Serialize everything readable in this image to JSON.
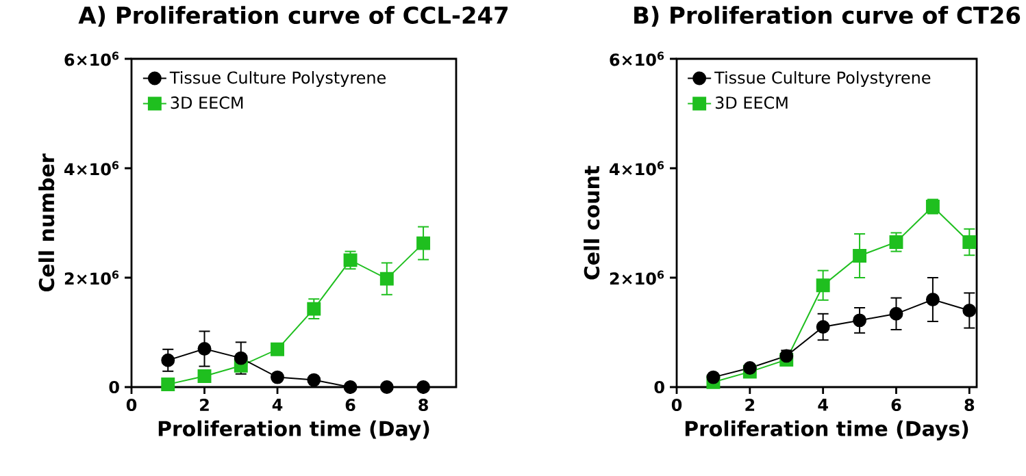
{
  "chart_data": [
    {
      "type": "line",
      "title": "A)    Proliferation curve of CCL-247",
      "xlabel": "Proliferation time (Day)",
      "ylabel": "Cell number",
      "x": [
        1,
        2,
        3,
        4,
        5,
        6,
        7,
        8
      ],
      "xlim": [
        0,
        8.9
      ],
      "xticks": [
        0,
        2,
        4,
        6,
        8
      ],
      "ylim": [
        0,
        6000000
      ],
      "yticks": [
        {
          "value": 0,
          "label": "0"
        },
        {
          "value": 2000000,
          "label": "2×10$^{6}$"
        },
        {
          "value": 4000000,
          "label": "4×10$^{6}$"
        },
        {
          "value": 6000000,
          "label": "6×10$^{6}$"
        }
      ],
      "legend": "top left",
      "grid": false,
      "series": [
        {
          "name": "Tissue Culture Polystyrene",
          "color": "#000000",
          "marker": "circle",
          "values": [
            490000,
            700000,
            530000,
            180000,
            130000,
            0,
            0,
            0
          ],
          "errors": [
            200000,
            320000,
            290000,
            null,
            null,
            null,
            null,
            null
          ]
        },
        {
          "name": "3D EECM",
          "color": "#1fbf1f",
          "marker": "square",
          "values": [
            50000,
            200000,
            390000,
            690000,
            1430000,
            2320000,
            1980000,
            2630000
          ],
          "errors": [
            null,
            null,
            null,
            null,
            180000,
            160000,
            290000,
            300000
          ]
        }
      ]
    },
    {
      "type": "line",
      "title": "B)    Proliferation curve of CT26",
      "xlabel": "Proliferation time (Days)",
      "ylabel": "Cell count",
      "x": [
        1,
        2,
        3,
        4,
        5,
        6,
        7,
        8
      ],
      "xlim": [
        0,
        8.2
      ],
      "xticks": [
        0,
        2,
        4,
        6,
        8
      ],
      "ylim": [
        0,
        6000000
      ],
      "yticks": [
        {
          "value": 0,
          "label": "0"
        },
        {
          "value": 2000000,
          "label": "2×10$^{6}$"
        },
        {
          "value": 4000000,
          "label": "4×10$^{6}$"
        },
        {
          "value": 6000000,
          "label": "6×10$^{6}$"
        }
      ],
      "legend": "top left",
      "grid": false,
      "series": [
        {
          "name": "Tissue Culture Polystyrene",
          "color": "#000000",
          "marker": "circle",
          "values": [
            180000,
            350000,
            570000,
            1100000,
            1220000,
            1340000,
            1600000,
            1400000
          ],
          "errors": [
            null,
            null,
            100000,
            240000,
            230000,
            290000,
            400000,
            320000
          ]
        },
        {
          "name": "3D EECM",
          "color": "#1fbf1f",
          "marker": "square",
          "values": [
            90000,
            280000,
            500000,
            1860000,
            2400000,
            2650000,
            3300000,
            2650000
          ],
          "errors": [
            null,
            null,
            null,
            270000,
            400000,
            170000,
            130000,
            240000
          ]
        }
      ]
    }
  ]
}
